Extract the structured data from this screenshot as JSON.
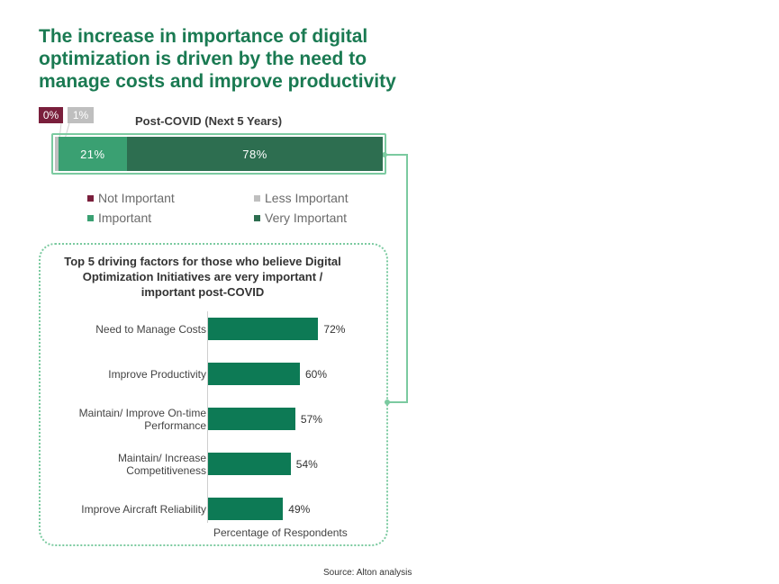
{
  "title": "The increase in importance of digital optimization is driven by the need to manage costs and improve productivity",
  "source": "Source: Alton analysis",
  "colors": {
    "not_important": "#7a1f3c",
    "less_important": "#bfbfbf",
    "important": "#3aa072",
    "very_important": "#2d6e50",
    "bar": "#0d7a55",
    "connector": "#7bcaa0",
    "title": "#1a7a52"
  },
  "chart_data": [
    {
      "type": "bar",
      "orientation": "horizontal-stacked",
      "title": "Post-COVID (Next 5 Years)",
      "series": [
        {
          "name": "Not Important",
          "value": 0,
          "label": "0%"
        },
        {
          "name": "Less Important",
          "value": 1,
          "label": "1%"
        },
        {
          "name": "Important",
          "value": 21,
          "label": "21%"
        },
        {
          "name": "Very Important",
          "value": 78,
          "label": "78%"
        }
      ],
      "legend": [
        "Not Important",
        "Less Important",
        "Important",
        "Very Important"
      ],
      "legend_position": "bottom"
    },
    {
      "type": "bar",
      "orientation": "horizontal",
      "title": "Top 5 driving factors for those who believe Digital Optimization Initiatives are very important / important post-COVID",
      "categories": [
        "Need to Manage Costs",
        "Improve Productivity",
        "Maintain/ Improve On-time Performance",
        "Maintain/ Increase Competitiveness",
        "Improve Aircraft Reliability"
      ],
      "category_lines": [
        [
          "Need to Manage Costs"
        ],
        [
          "Improve Productivity"
        ],
        [
          "Maintain/ Improve On-time",
          "Performance"
        ],
        [
          "Maintain/ Increase",
          "Competitiveness"
        ],
        [
          "Improve Aircraft Reliability"
        ]
      ],
      "values": [
        72,
        60,
        57,
        54,
        49
      ],
      "value_labels": [
        "72%",
        "60%",
        "57%",
        "54%",
        "49%"
      ],
      "xlabel": "Percentage of Respondents",
      "xlim": [
        0,
        100
      ],
      "grid": false
    }
  ]
}
